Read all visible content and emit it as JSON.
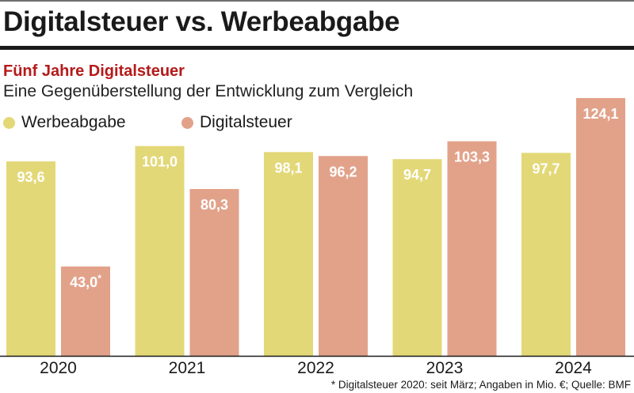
{
  "header": {
    "title": "Digitalsteuer vs. Werbeabgabe"
  },
  "chart_data": {
    "type": "bar",
    "title": "Digitalsteuer vs. Werbeabgabe",
    "subtitle": "Fünf Jahre Digitalsteuer",
    "description": "Eine Gegenüberstellung der Entwicklung zum Vergleich",
    "xlabel": "",
    "ylabel": "",
    "ylim": [
      0,
      124.1
    ],
    "grid": false,
    "legend_position": "top-left",
    "categories": [
      "2020",
      "2021",
      "2022",
      "2023",
      "2024"
    ],
    "series": [
      {
        "name": "Werbeabgabe",
        "color": "#e3d877",
        "values": [
          93.6,
          101.0,
          98.1,
          94.7,
          97.7
        ],
        "labels": [
          "93,6",
          "101,0",
          "98,1",
          "94,7",
          "97,7"
        ]
      },
      {
        "name": "Digitalsteuer",
        "color": "#e2a28a",
        "values": [
          43.0,
          80.3,
          96.2,
          103.3,
          124.1
        ],
        "labels": [
          "43,0*",
          "80,3",
          "96,2",
          "103,3",
          "124,1"
        ]
      }
    ],
    "footnote": "* Digitalsteuer 2020: seit März; Angaben in Mio. €; Quelle: BMF"
  },
  "colors": {
    "subtitle": "#b51a1a",
    "text": "#1a1a1a",
    "baseline": "#1a1a1a"
  }
}
